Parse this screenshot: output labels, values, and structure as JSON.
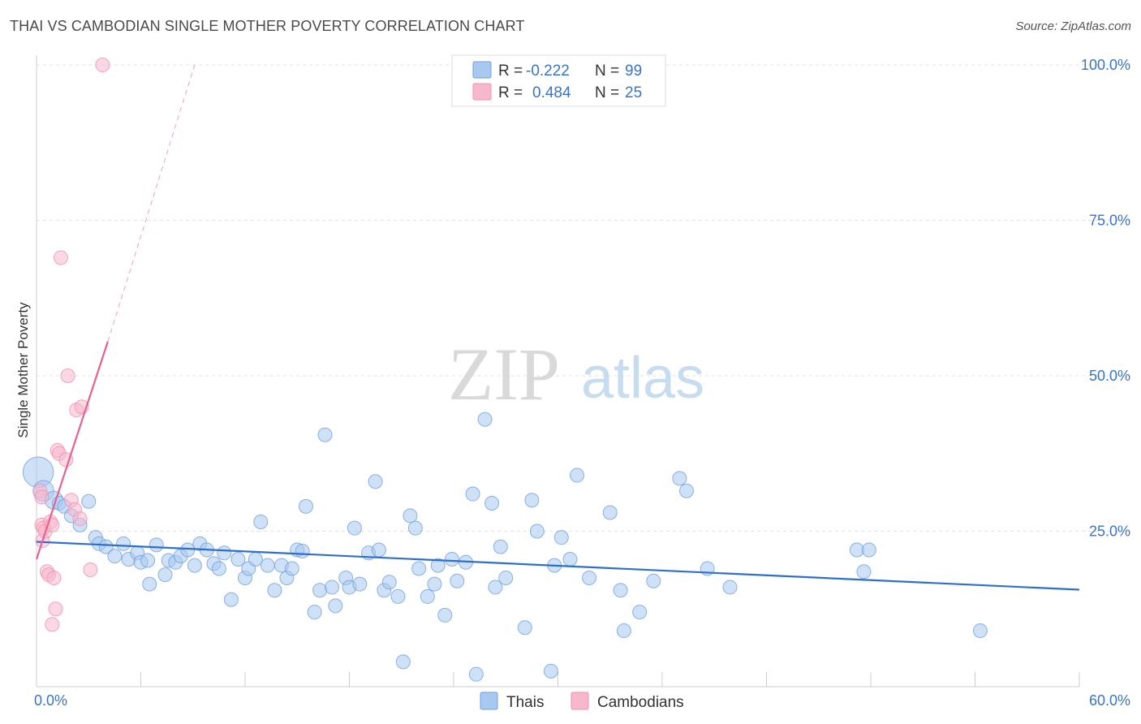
{
  "title": "THAI VS CAMBODIAN SINGLE MOTHER POVERTY CORRELATION CHART",
  "source": "Source: ZipAtlas.com",
  "watermark": {
    "zip": "ZIP",
    "atlas": "atlas"
  },
  "legend_box": {
    "rows": [
      {
        "r_label": "R =",
        "r_value": "-0.222",
        "n_label": "N =",
        "n_value": "99",
        "color": "#a8c8f0"
      },
      {
        "r_label": "R =",
        "r_value": "0.484",
        "n_label": "N =",
        "n_value": "25",
        "color": "#f8b8cc"
      }
    ]
  },
  "bottom_legend": [
    {
      "label": "Thais",
      "color": "#a8c8f0"
    },
    {
      "label": "Cambodians",
      "color": "#f8b8cc"
    }
  ],
  "chart_data": {
    "type": "scatter",
    "title": "THAI VS CAMBODIAN SINGLE MOTHER POVERTY CORRELATION CHART",
    "xlabel": "",
    "ylabel": "Single Mother Poverty",
    "xlim": [
      0,
      60
    ],
    "ylim": [
      0,
      100
    ],
    "x_tick_labels": [
      "0.0%",
      "60.0%"
    ],
    "y_tick_labels": [
      "25.0%",
      "50.0%",
      "75.0%",
      "100.0%"
    ],
    "y_ticks": [
      25,
      50,
      75,
      100
    ],
    "grid": true,
    "legend_placement": "top-center",
    "series": [
      {
        "name": "Thais",
        "color": "#6fa0e0",
        "fill": "#a8c8f0",
        "trend": {
          "x": [
            0,
            60
          ],
          "y": [
            23.3,
            15.6
          ],
          "color": "#2f6fcc"
        },
        "points": [
          [
            0.1,
            34.5,
            2.2
          ],
          [
            0.4,
            31.5,
            1.5
          ],
          [
            1.0,
            30.0,
            1.3
          ],
          [
            1.3,
            29.5,
            1.0
          ],
          [
            1.6,
            29.0,
            1.0
          ],
          [
            2.0,
            27.5,
            1.0
          ],
          [
            2.5,
            26.0,
            1.0
          ],
          [
            3.0,
            29.8,
            1.0
          ],
          [
            3.4,
            24.0,
            1.0
          ],
          [
            3.6,
            23.0,
            1.0
          ],
          [
            4.0,
            22.5,
            1.0
          ],
          [
            4.5,
            21.0,
            1.0
          ],
          [
            5.0,
            23.0,
            1.0
          ],
          [
            5.3,
            20.5,
            1.0
          ],
          [
            5.8,
            21.5,
            1.0
          ],
          [
            6.0,
            20.0,
            1.0
          ],
          [
            6.4,
            20.3,
            1.0
          ],
          [
            6.5,
            16.5,
            1.0
          ],
          [
            6.9,
            22.8,
            1.0
          ],
          [
            7.4,
            18.0,
            1.0
          ],
          [
            7.6,
            20.3,
            1.0
          ],
          [
            8.0,
            20.0,
            1.0
          ],
          [
            8.3,
            21.0,
            1.0
          ],
          [
            8.7,
            22.0,
            1.0
          ],
          [
            9.1,
            19.5,
            1.0
          ],
          [
            9.4,
            23.0,
            1.0
          ],
          [
            9.8,
            22.0,
            1.0
          ],
          [
            10.2,
            19.8,
            1.0
          ],
          [
            10.5,
            19.0,
            1.0
          ],
          [
            10.8,
            21.5,
            1.0
          ],
          [
            11.2,
            14.0,
            1.0
          ],
          [
            11.6,
            20.5,
            1.0
          ],
          [
            12.0,
            17.5,
            1.0
          ],
          [
            12.2,
            19.0,
            1.0
          ],
          [
            12.6,
            20.5,
            1.0
          ],
          [
            12.9,
            26.5,
            1.0
          ],
          [
            13.3,
            19.5,
            1.0
          ],
          [
            13.7,
            15.5,
            1.0
          ],
          [
            14.1,
            19.5,
            1.0
          ],
          [
            14.4,
            17.5,
            1.0
          ],
          [
            14.7,
            19.0,
            1.0
          ],
          [
            15.0,
            22.0,
            1.0
          ],
          [
            15.3,
            21.8,
            1.0
          ],
          [
            15.5,
            29.0,
            1.0
          ],
          [
            16.0,
            12.0,
            1.0
          ],
          [
            16.3,
            15.5,
            1.0
          ],
          [
            16.6,
            40.5,
            1.0
          ],
          [
            17.0,
            16.0,
            1.0
          ],
          [
            17.2,
            13.0,
            1.0
          ],
          [
            17.8,
            17.5,
            1.0
          ],
          [
            18.0,
            16.0,
            1.0
          ],
          [
            18.3,
            25.5,
            1.0
          ],
          [
            18.6,
            16.5,
            1.0
          ],
          [
            19.1,
            21.5,
            1.0
          ],
          [
            19.5,
            33.0,
            1.0
          ],
          [
            19.7,
            22.0,
            1.0
          ],
          [
            20.0,
            15.5,
            1.0
          ],
          [
            20.3,
            16.8,
            1.0
          ],
          [
            20.8,
            14.5,
            1.0
          ],
          [
            21.1,
            4.0,
            1.0
          ],
          [
            21.5,
            27.5,
            1.0
          ],
          [
            21.8,
            25.5,
            1.0
          ],
          [
            22.0,
            19.0,
            1.0
          ],
          [
            22.5,
            14.5,
            1.0
          ],
          [
            22.9,
            16.5,
            1.0
          ],
          [
            23.1,
            19.5,
            1.0
          ],
          [
            23.5,
            11.5,
            1.0
          ],
          [
            23.9,
            20.5,
            1.0
          ],
          [
            24.2,
            17.0,
            1.0
          ],
          [
            24.7,
            20.0,
            1.0
          ],
          [
            25.1,
            31.0,
            1.0
          ],
          [
            25.3,
            2.0,
            1.0
          ],
          [
            25.8,
            43.0,
            1.0
          ],
          [
            26.2,
            29.5,
            1.0
          ],
          [
            26.4,
            16.0,
            1.0
          ],
          [
            26.7,
            22.5,
            1.0
          ],
          [
            27.0,
            17.5,
            1.0
          ],
          [
            28.1,
            9.5,
            1.0
          ],
          [
            28.5,
            30.0,
            1.0
          ],
          [
            28.8,
            25.0,
            1.0
          ],
          [
            29.6,
            2.5,
            1.0
          ],
          [
            29.8,
            19.5,
            1.0
          ],
          [
            30.2,
            24.0,
            1.0
          ],
          [
            30.7,
            20.5,
            1.0
          ],
          [
            31.1,
            34.0,
            1.0
          ],
          [
            31.8,
            17.5,
            1.0
          ],
          [
            33.0,
            28.0,
            1.0
          ],
          [
            33.6,
            15.5,
            1.0
          ],
          [
            33.8,
            9.0,
            1.0
          ],
          [
            34.7,
            12.0,
            1.0
          ],
          [
            35.5,
            17.0,
            1.0
          ],
          [
            37.0,
            33.5,
            1.0
          ],
          [
            37.4,
            31.5,
            1.0
          ],
          [
            38.6,
            19.0,
            1.0
          ],
          [
            39.9,
            16.0,
            1.0
          ],
          [
            47.2,
            22.0,
            1.0
          ],
          [
            47.6,
            18.5,
            1.0
          ],
          [
            47.9,
            22.0,
            1.0
          ],
          [
            54.3,
            9.0,
            1.0
          ]
        ]
      },
      {
        "name": "Cambodians",
        "color": "#f090b0",
        "fill": "#f8b8cc",
        "trend": {
          "x": [
            0,
            4.1
          ],
          "y": [
            20.5,
            55.5
          ],
          "color": "#e8608e",
          "dashed_extension": {
            "x": [
              4.1,
              9.1
            ],
            "y": [
              55.5,
              100
            ]
          }
        },
        "points": [
          [
            0.2,
            31.5,
            1.0
          ],
          [
            0.3,
            26.0,
            1.0
          ],
          [
            0.35,
            23.5,
            1.0
          ],
          [
            0.4,
            25.5,
            1.0
          ],
          [
            0.5,
            25.0,
            1.0
          ],
          [
            0.6,
            18.5,
            1.0
          ],
          [
            0.7,
            18.0,
            1.0
          ],
          [
            0.8,
            26.5,
            1.0
          ],
          [
            0.9,
            26.0,
            1.0
          ],
          [
            0.9,
            10.0,
            1.0
          ],
          [
            1.0,
            17.5,
            1.0
          ],
          [
            1.1,
            12.5,
            1.0
          ],
          [
            1.2,
            38.0,
            1.0
          ],
          [
            1.3,
            37.5,
            1.0
          ],
          [
            1.4,
            69.0,
            1.0
          ],
          [
            1.7,
            36.5,
            1.0
          ],
          [
            1.8,
            50.0,
            1.0
          ],
          [
            2.0,
            30.0,
            1.0
          ],
          [
            2.2,
            28.5,
            1.0
          ],
          [
            2.3,
            44.5,
            1.0
          ],
          [
            2.5,
            27.0,
            1.0
          ],
          [
            2.6,
            45.0,
            1.0
          ],
          [
            3.1,
            18.8,
            1.0
          ],
          [
            3.8,
            100.0,
            1.0
          ],
          [
            0.3,
            30.5,
            1.0
          ]
        ]
      }
    ]
  }
}
